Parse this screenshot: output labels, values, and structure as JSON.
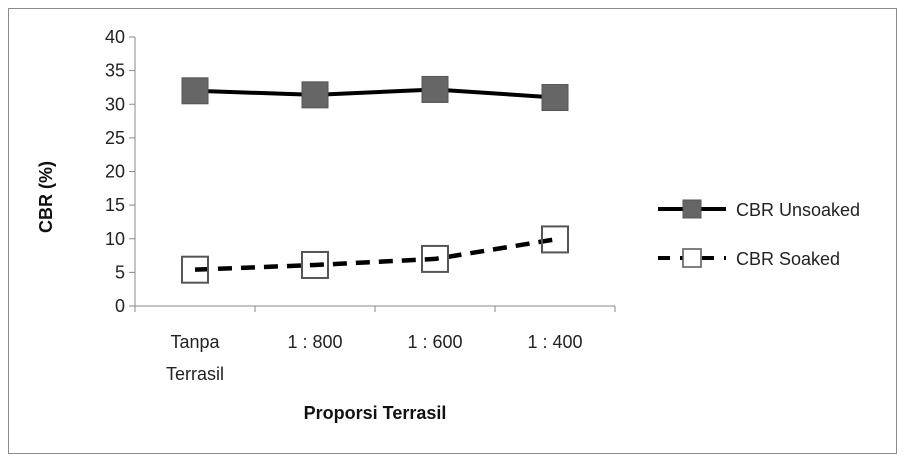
{
  "chart_data": {
    "type": "line",
    "categories": [
      [
        "Tanpa",
        "Terrasil"
      ],
      [
        "1 : 800"
      ],
      [
        "1 : 600"
      ],
      [
        "1 : 400"
      ]
    ],
    "xlabel": "Proporsi Terrasil",
    "ylabel": "CBR (%)",
    "ylim": [
      0,
      40
    ],
    "yticks": [
      0,
      5,
      10,
      15,
      20,
      25,
      30,
      35,
      40
    ],
    "grid": false,
    "legend_position": "right",
    "series": [
      {
        "name": "CBR Unsoaked",
        "values": [
          32.0,
          31.4,
          32.2,
          31.0
        ],
        "line": "solid",
        "marker": "filled-square",
        "color": "#000000",
        "marker_color": "#666666"
      },
      {
        "name": "CBR Soaked",
        "values": [
          5.4,
          6.1,
          7.0,
          9.9
        ],
        "line": "dashed",
        "marker": "open-square",
        "color": "#000000",
        "marker_color": "#ffffff"
      }
    ]
  }
}
